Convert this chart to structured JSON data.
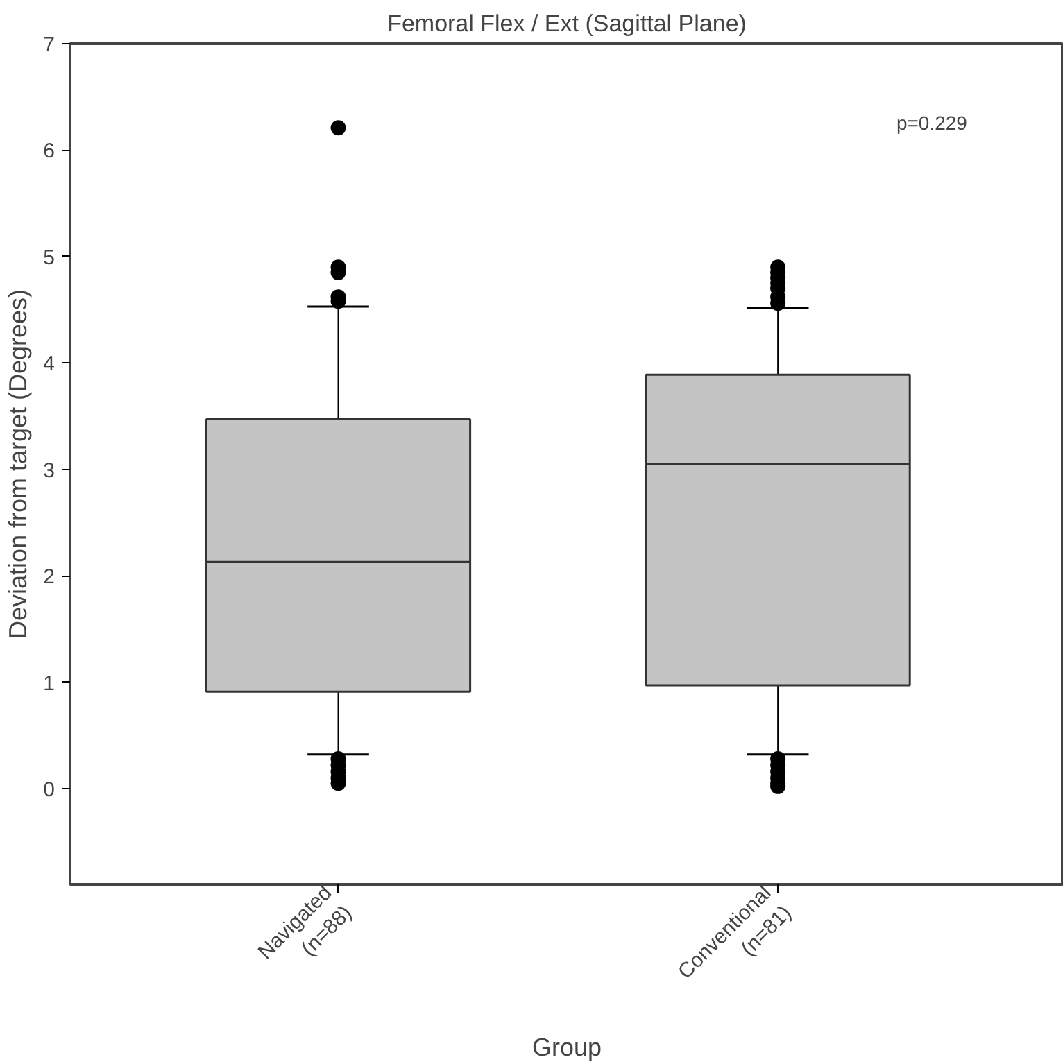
{
  "chart_data": {
    "type": "box",
    "title": "Femoral Flex / Ext (Sagittal Plane)",
    "xlabel": "Group",
    "ylabel": "Deviation from target (Degrees)",
    "categories": [
      "Navigated\n(n=88)",
      "Conventional\n(n=81)"
    ],
    "boxes": [
      {
        "low": 0.32,
        "q1": 0.91,
        "median": 2.13,
        "q3": 3.47,
        "high": 4.53,
        "outliers": [
          6.21,
          4.9,
          4.85,
          4.62,
          4.58,
          0.28,
          0.22,
          0.16,
          0.1,
          0.05
        ]
      },
      {
        "low": 0.32,
        "q1": 0.97,
        "median": 3.05,
        "q3": 3.89,
        "high": 4.52,
        "outliers": [
          4.9,
          4.85,
          4.8,
          4.75,
          4.7,
          4.62,
          4.56,
          0.28,
          0.22,
          0.16,
          0.1,
          0.05,
          0.02
        ]
      }
    ],
    "color": "#c4c4c4",
    "ylim": [
      -0.9,
      7
    ],
    "yticks": [
      0,
      1,
      2,
      3,
      4,
      5,
      6,
      7
    ],
    "grid": false,
    "annotations": [
      "p=0.229"
    ]
  }
}
